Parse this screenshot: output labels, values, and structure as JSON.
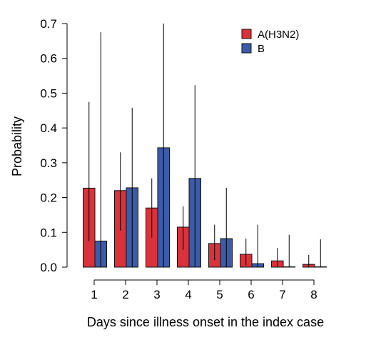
{
  "chart_data": {
    "type": "bar",
    "xlabel": "Days since illness onset in the index case",
    "ylabel": "Probability",
    "categories": [
      "1",
      "2",
      "3",
      "4",
      "5",
      "6",
      "7",
      "8"
    ],
    "ylim": [
      0,
      0.7
    ],
    "yticks": [
      "0.0",
      "0.1",
      "0.2",
      "0.3",
      "0.4",
      "0.5",
      "0.6",
      "0.7"
    ],
    "grid": false,
    "legend_position": "top-right",
    "series": [
      {
        "name": "A(H3N2)",
        "color": "#d9323a",
        "values": [
          0.227,
          0.22,
          0.17,
          0.115,
          0.068,
          0.037,
          0.018,
          0.008
        ],
        "lower": [
          0.075,
          0.105,
          0.085,
          0.05,
          0.02,
          0.005,
          0.0,
          0.0
        ],
        "upper": [
          0.475,
          0.33,
          0.255,
          0.175,
          0.122,
          0.082,
          0.055,
          0.035
        ]
      },
      {
        "name": "B",
        "color": "#3c5ba8",
        "values": [
          0.075,
          0.228,
          0.343,
          0.255,
          0.082,
          0.01,
          0.001,
          0.001
        ],
        "lower": [
          0.0,
          0.0,
          0.0,
          0.0,
          0.0,
          0.0,
          0.0,
          0.0
        ],
        "upper": [
          0.675,
          0.458,
          0.7,
          0.523,
          0.228,
          0.122,
          0.093,
          0.08
        ]
      }
    ]
  }
}
